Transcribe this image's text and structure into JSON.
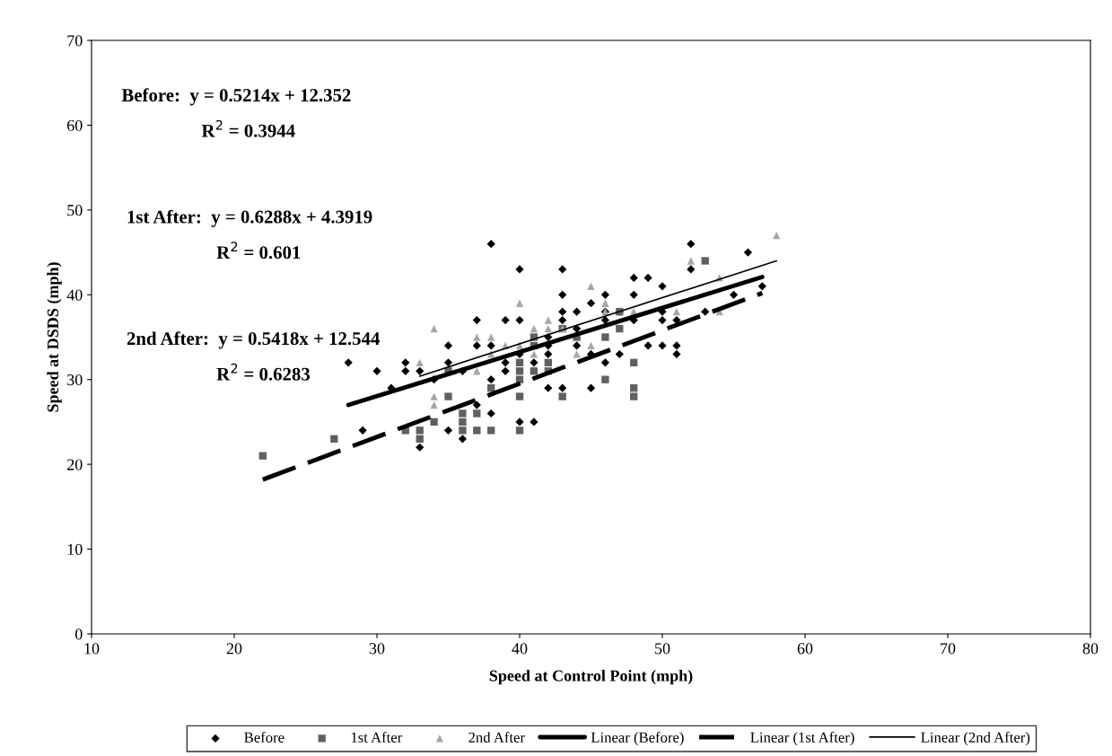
{
  "chart_data": {
    "type": "scatter",
    "xlabel": "Speed at Control Point (mph)",
    "ylabel": "Speed at DSDS (mph)",
    "xlim": [
      10,
      80
    ],
    "xticks": [
      10,
      20,
      30,
      40,
      50,
      60,
      70,
      80
    ],
    "ylim": [
      0,
      70
    ],
    "yticks": [
      0,
      10,
      20,
      30,
      40,
      50,
      60,
      70
    ],
    "grid": false,
    "legend": "bottom",
    "annotations": [
      "Before:  y = 0.5214x + 12.352",
      "R$^{2}$ = 0.3944",
      "1st After:  y = 0.6288x + 4.3919",
      "R$^{2}$ = 0.601",
      "2nd After:  y = 0.5418x + 12.544",
      "R$^{2}$ = 0.6283"
    ],
    "series": [
      {
        "name": "Before",
        "marker": "diamond",
        "color": "#000000",
        "x": [
          28,
          29,
          30,
          31,
          32,
          32,
          33,
          33,
          34,
          35,
          35,
          35,
          36,
          36,
          37,
          37,
          37,
          38,
          38,
          38,
          38,
          39,
          39,
          39,
          40,
          40,
          40,
          40,
          41,
          41,
          42,
          42,
          42,
          42,
          43,
          43,
          43,
          43,
          43,
          44,
          44,
          44,
          45,
          45,
          45,
          46,
          46,
          46,
          46,
          47,
          47,
          48,
          48,
          48,
          49,
          49,
          50,
          50,
          50,
          50,
          51,
          51,
          51,
          52,
          52,
          53,
          55,
          56,
          57
        ],
        "values": [
          32,
          24,
          31,
          29,
          32,
          31,
          31,
          22,
          30,
          34,
          32,
          24,
          31,
          23,
          37,
          34,
          27,
          46,
          34,
          30,
          26,
          37,
          32,
          31,
          43,
          37,
          33,
          25,
          32,
          25,
          35,
          34,
          33,
          29,
          43,
          40,
          38,
          37,
          29,
          38,
          36,
          34,
          39,
          33,
          29,
          40,
          38,
          37,
          32,
          38,
          33,
          42,
          40,
          37,
          42,
          34,
          41,
          38,
          37,
          34,
          37,
          34,
          33,
          46,
          43,
          38,
          40,
          45,
          41
        ]
      },
      {
        "name": "1st After",
        "marker": "square",
        "color": "#606060",
        "x": [
          22,
          27,
          32,
          33,
          33,
          34,
          35,
          35,
          36,
          36,
          36,
          37,
          37,
          38,
          38,
          40,
          40,
          40,
          40,
          40,
          41,
          41,
          41,
          42,
          42,
          43,
          43,
          44,
          46,
          46,
          47,
          47,
          48,
          48,
          48,
          53
        ],
        "values": [
          21,
          23,
          24,
          24,
          23,
          25,
          31,
          28,
          26,
          25,
          24,
          26,
          24,
          29,
          24,
          32,
          31,
          30,
          28,
          24,
          35,
          34,
          31,
          32,
          31,
          28,
          36,
          35,
          35,
          30,
          38,
          36,
          32,
          29,
          28,
          44
        ]
      },
      {
        "name": "2nd After",
        "marker": "triangle",
        "color": "#a6a6a6",
        "x": [
          33,
          34,
          34,
          34,
          37,
          37,
          38,
          38,
          39,
          40,
          40,
          41,
          41,
          42,
          42,
          43,
          44,
          45,
          45,
          46,
          46,
          48,
          51,
          52,
          54,
          54,
          58
        ],
        "values": [
          32,
          36,
          28,
          27,
          35,
          31,
          35,
          33,
          34,
          39,
          34,
          36,
          33,
          37,
          36,
          36,
          33,
          41,
          34,
          39,
          38,
          38,
          38,
          44,
          42,
          38,
          47
        ]
      },
      {
        "name": "Linear (Before)",
        "type": "line",
        "line_style": "solid",
        "color": "#000000",
        "x": [
          28,
          57
        ],
        "values": [
          27.0,
          42.1
        ]
      },
      {
        "name": "Linear (1st After)",
        "type": "line",
        "line_style": "dashed",
        "color": "#000000",
        "x": [
          22,
          57
        ],
        "values": [
          18.2,
          40.2
        ]
      },
      {
        "name": "Linear (2nd After)",
        "type": "line",
        "line_style": "solid",
        "color": "#000000",
        "x": [
          33,
          58
        ],
        "values": [
          30.4,
          44.0
        ]
      }
    ]
  }
}
